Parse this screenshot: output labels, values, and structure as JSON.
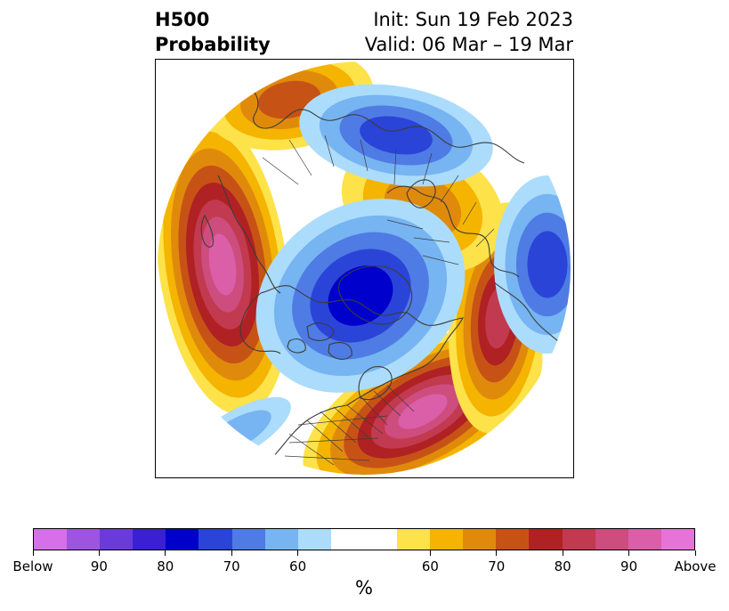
{
  "title": {
    "left_line1": "H500",
    "left_line2": "Probability",
    "right_line1": "Init: Sun 19 Feb 2023",
    "right_line2": "Valid: 06 Mar – 19 Mar"
  },
  "map": {
    "projection": "north-polar-stereographic",
    "features": [
      "coastlines",
      "country-borders",
      "us-state-borders",
      "probability-shading"
    ]
  },
  "colorbar": {
    "below_colors": [
      "#d670e8",
      "#9d55e0",
      "#6a3bd8",
      "#3a1fd4",
      "#0000cc",
      "#2a44d8",
      "#4f7be4",
      "#77b4f2",
      "#acdcfb"
    ],
    "blank_color": "#ffffff",
    "above_colors": [
      "#fde24a",
      "#f4b400",
      "#e08a0c",
      "#c75216",
      "#b02124",
      "#c23a4f",
      "#cd4d7e",
      "#db5ea8",
      "#e674d8"
    ],
    "tick_labels": [
      "Below",
      "90",
      "80",
      "70",
      "60",
      "60",
      "70",
      "80",
      "90",
      "Above"
    ],
    "unit_label": "%"
  },
  "contours": {
    "above_palette": [
      "#fde24a",
      "#f4b400",
      "#e08a0c",
      "#c75216",
      "#b02124",
      "#c23a4f",
      "#cd4d7e",
      "#db5ea8"
    ],
    "below_palette": [
      "#acdcfb",
      "#77b4f2",
      "#4f7be4",
      "#2a44d8",
      "#0000cc",
      "#3a1fd4"
    ]
  }
}
